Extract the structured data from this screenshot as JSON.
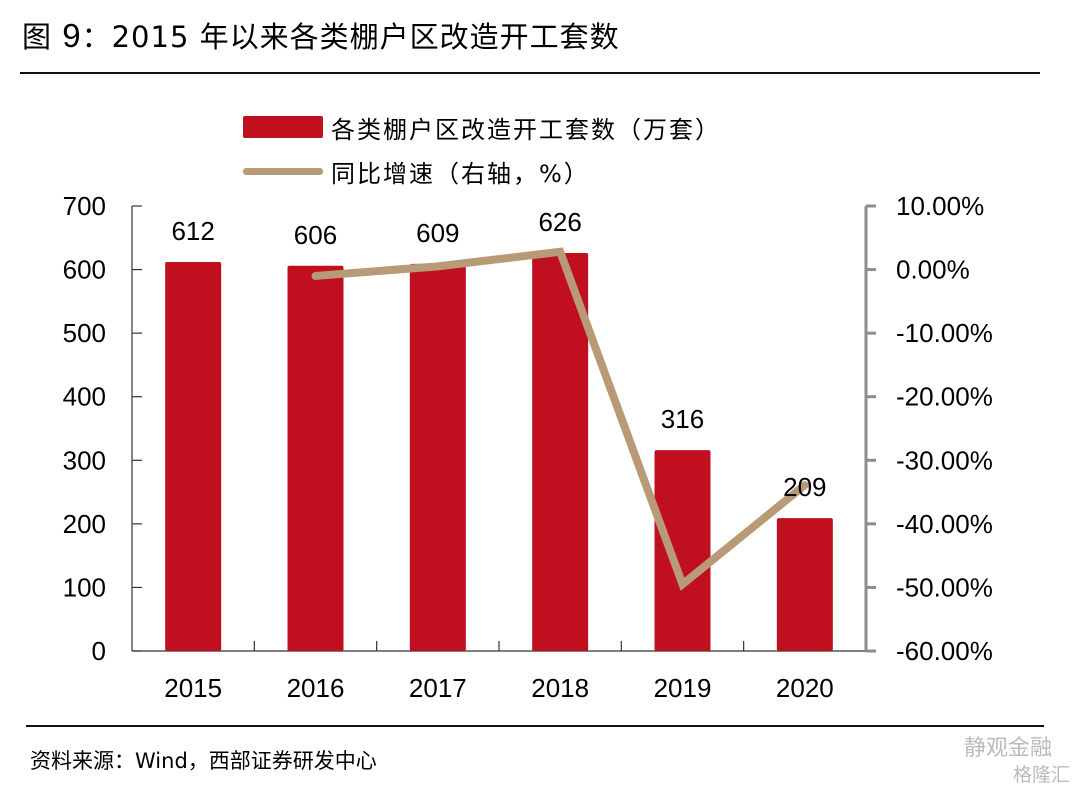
{
  "title": {
    "prefix": "图",
    "number": "9",
    "text": "：2015 年以来各类棚户区改造开工套数"
  },
  "source": "资料来源：Wind，西部证券研发中心",
  "watermark": {
    "line1": "静观金融",
    "line2": "格隆汇"
  },
  "colors": {
    "bar": "#c00f1e",
    "line": "#b99a76",
    "right_axis": "#8c8c8c"
  },
  "chart_data": {
    "type": "bar",
    "title": "2015 年以来各类棚户区改造开工套数",
    "categories": [
      "2015",
      "2016",
      "2017",
      "2018",
      "2019",
      "2020"
    ],
    "series": [
      {
        "name": "各类棚户区改造开工套数（万套）",
        "type": "bar",
        "axis": "left",
        "values": [
          612,
          606,
          609,
          626,
          316,
          209
        ],
        "data_labels": [
          "612",
          "606",
          "609",
          "626",
          "316",
          "209"
        ]
      },
      {
        "name": "同比增速（右轴，%）",
        "type": "line",
        "axis": "right",
        "x": [
          "2016",
          "2017",
          "2018",
          "2019",
          "2020"
        ],
        "values": [
          -1.0,
          0.5,
          2.8,
          -49.5,
          -33.9
        ]
      }
    ],
    "left_axis": {
      "ylim": [
        0,
        700
      ],
      "ticks": [
        "0",
        "100",
        "200",
        "300",
        "400",
        "500",
        "600",
        "700"
      ],
      "tick_values": [
        0,
        100,
        200,
        300,
        400,
        500,
        600,
        700
      ]
    },
    "right_axis": {
      "ylim": [
        -60,
        10
      ],
      "ticks": [
        "10.00%",
        "0.00%",
        "-10.00%",
        "-20.00%",
        "-30.00%",
        "-40.00%",
        "-50.00%",
        "-60.00%"
      ],
      "tick_values": [
        10,
        0,
        -10,
        -20,
        -30,
        -40,
        -50,
        -60
      ]
    },
    "legend": {
      "position": "top-center",
      "entries": [
        "各类棚户区改造开工套数（万套）",
        "同比增速（右轴，%）"
      ]
    },
    "grid": false,
    "xlabel": "",
    "ylabel": ""
  }
}
